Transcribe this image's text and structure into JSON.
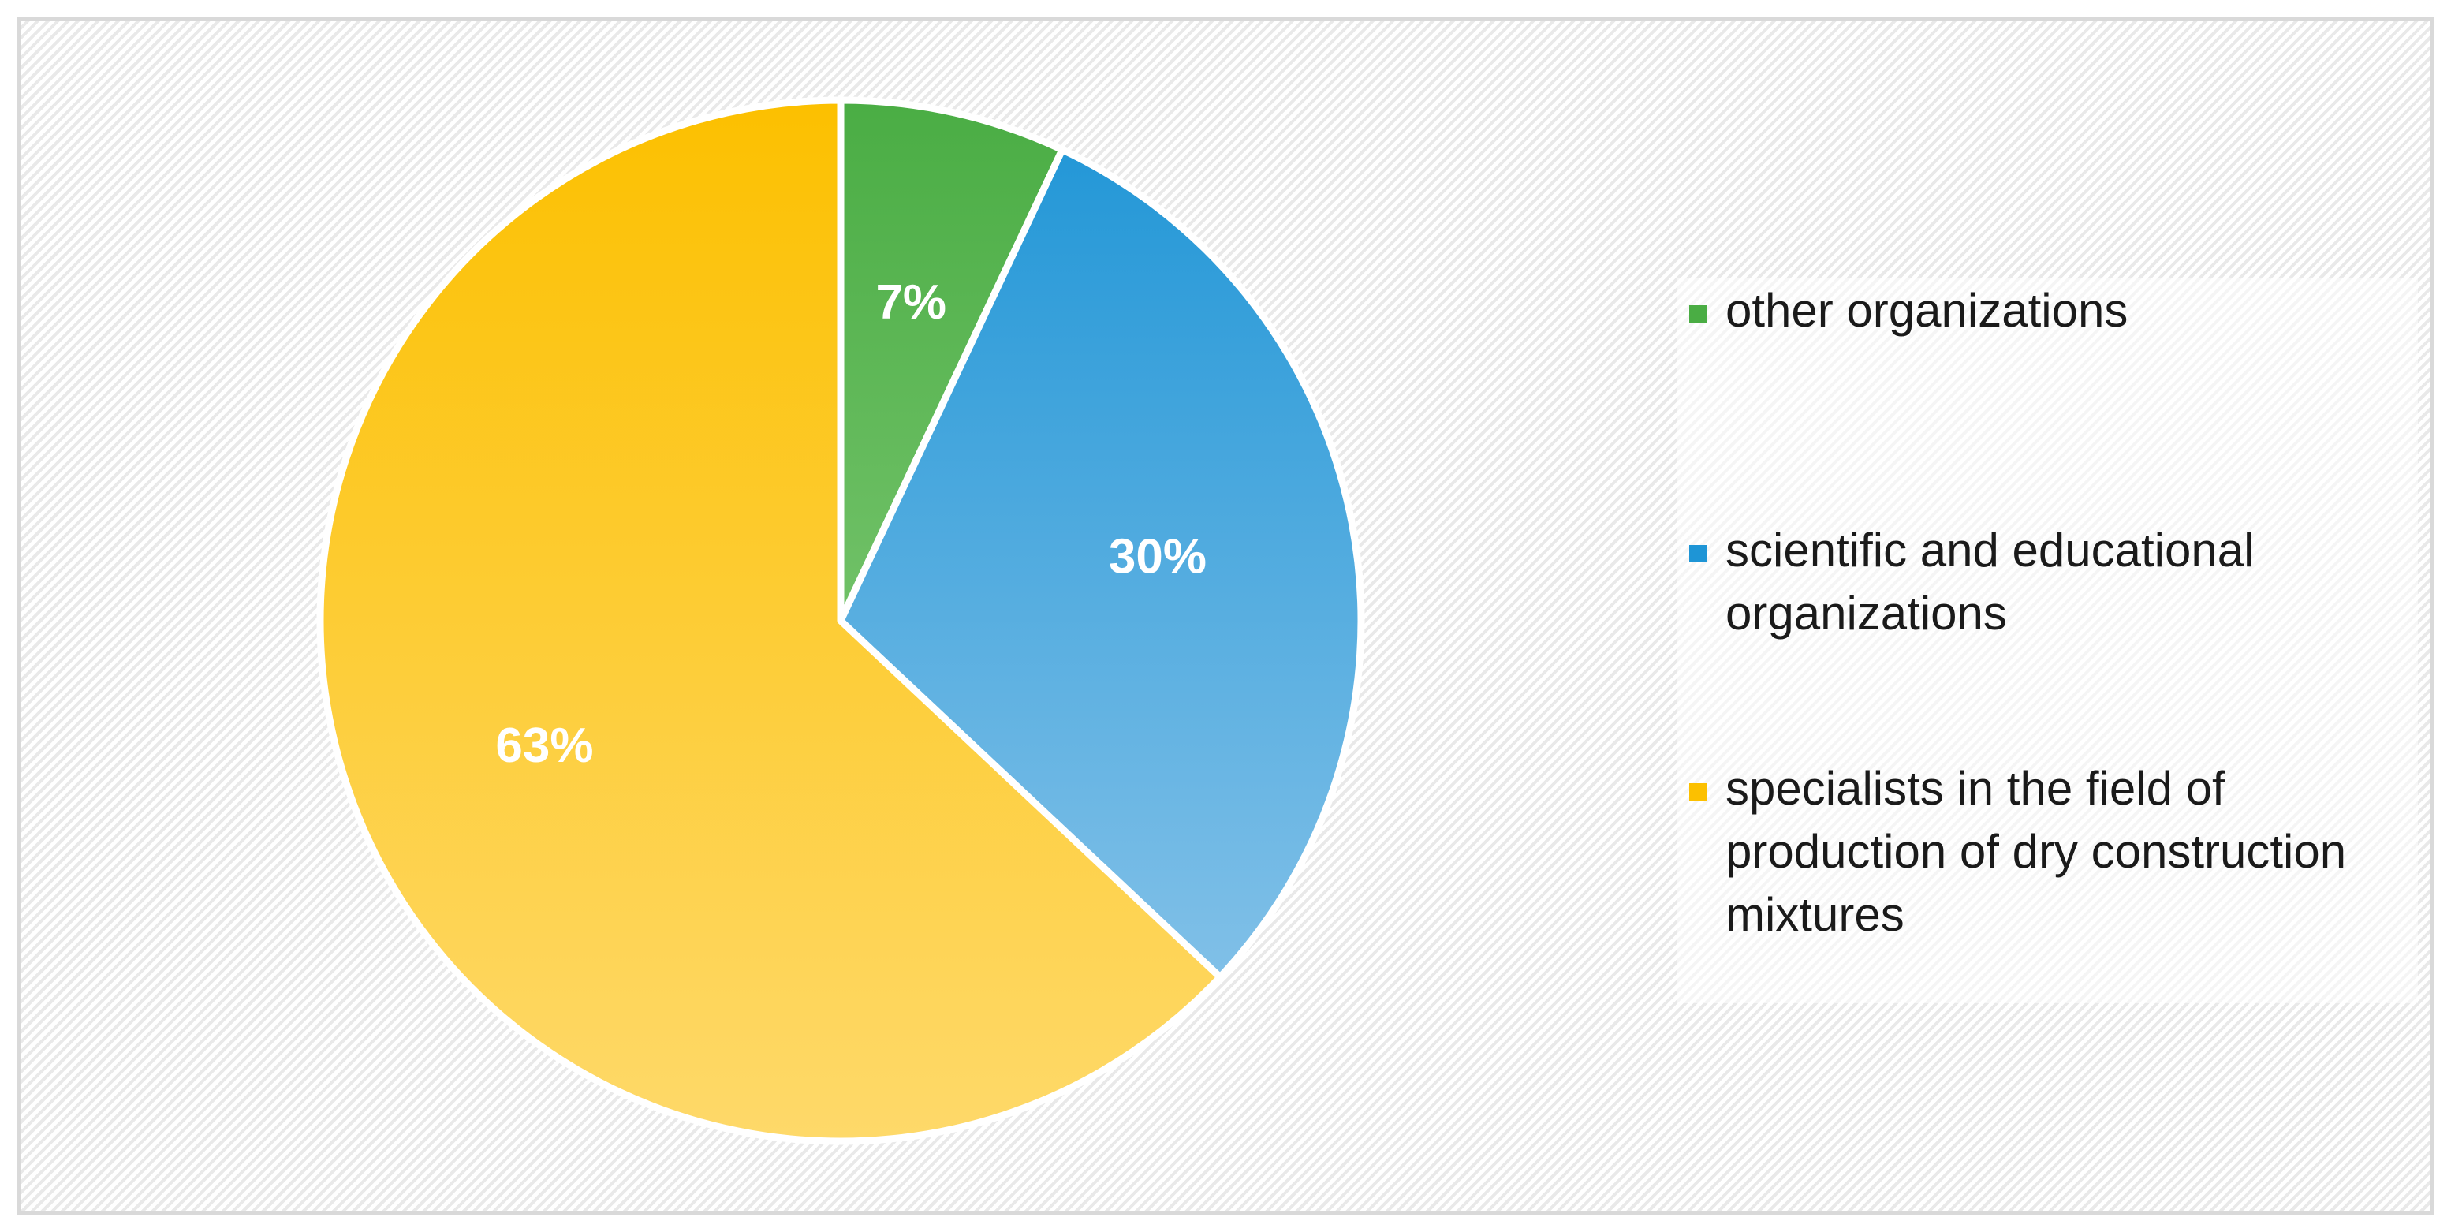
{
  "chart_data": {
    "type": "pie",
    "title": "",
    "slices": [
      {
        "label": "other organizations",
        "value": 7,
        "data_label": "7%",
        "color": "#4aad44",
        "color_light": "#98d68c"
      },
      {
        "label": "scientific and educational organizations",
        "value": 30,
        "data_label": "30%",
        "color": "#1e95d6",
        "color_light": "#93c8eb"
      },
      {
        "label": "specialists in the field of production of dry construction mixtures",
        "value": 63,
        "data_label": "63%",
        "color": "#fcc000",
        "color_light": "#fed96a"
      }
    ],
    "legend": {
      "placement": "right",
      "entries": [
        {
          "lines": [
            "other organizations"
          ],
          "color": "#4aad44"
        },
        {
          "lines": [
            "scientific and educational",
            "organizations"
          ],
          "color": "#1e95d6"
        },
        {
          "lines": [
            "specialists in the field of",
            "production of dry construction",
            "mixtures"
          ],
          "color": "#fcc000"
        }
      ]
    }
  }
}
